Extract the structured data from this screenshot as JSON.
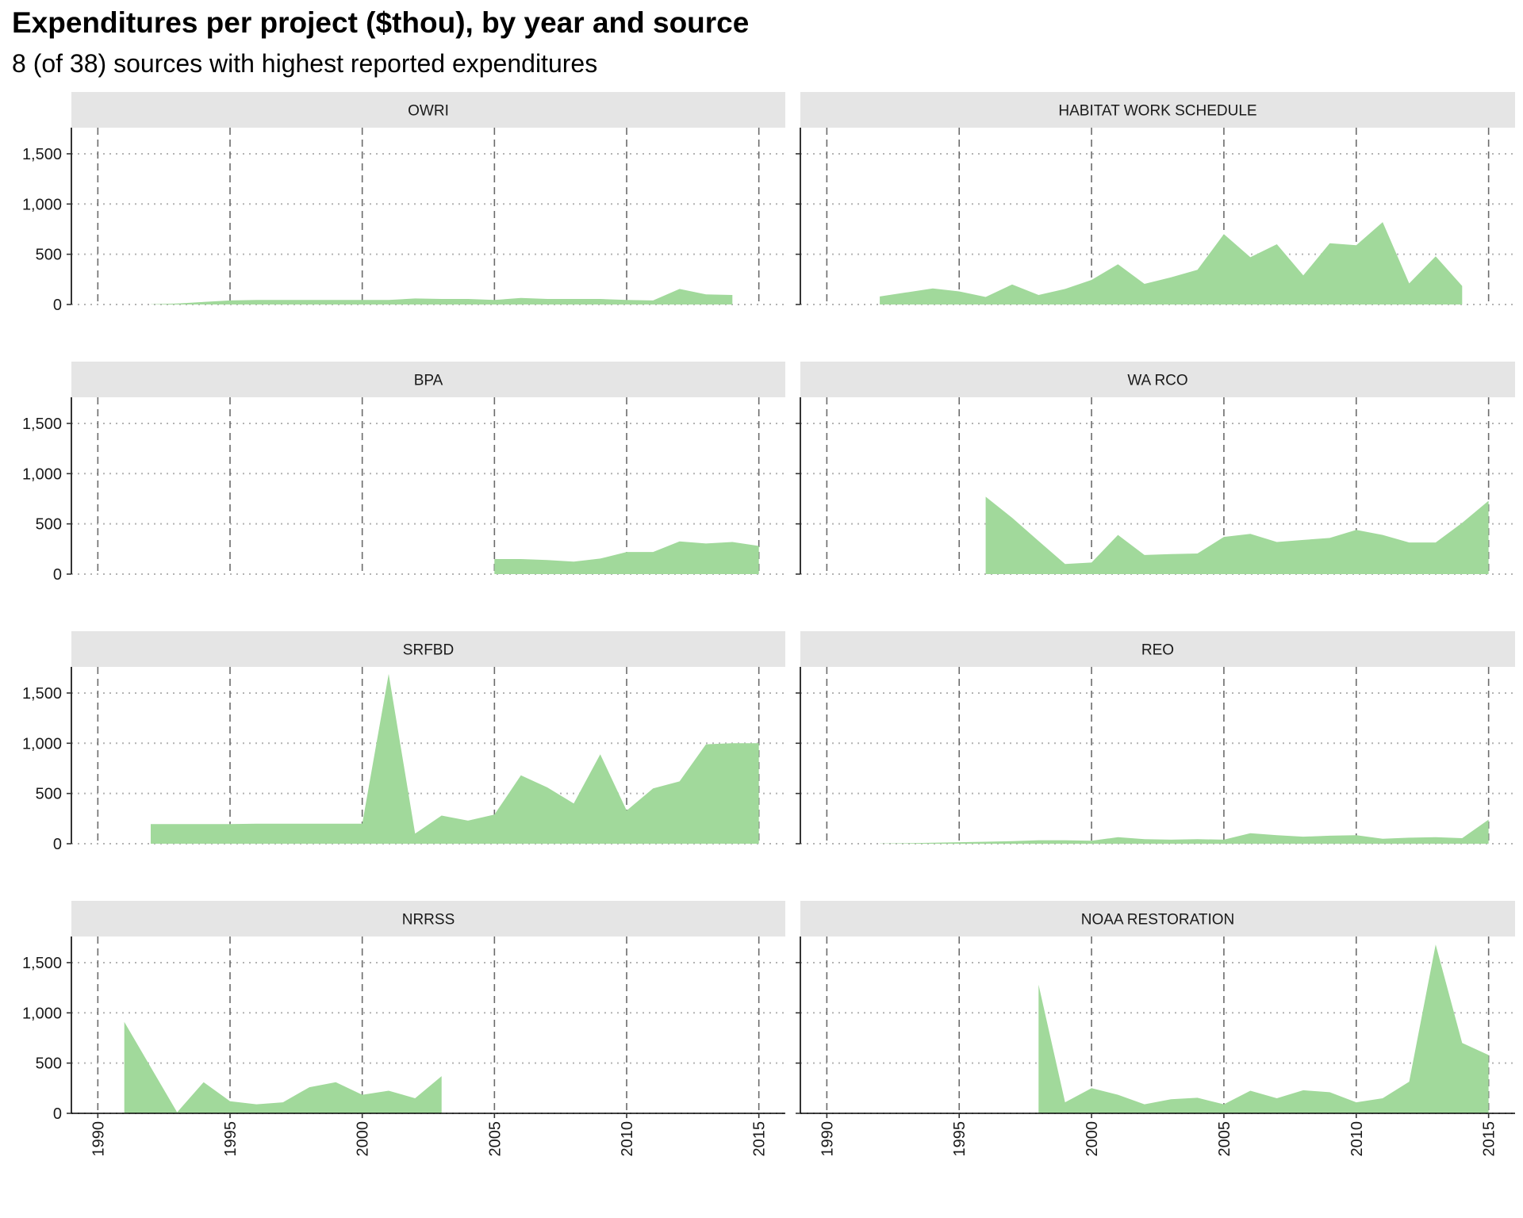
{
  "chart_data": {
    "type": "area",
    "title": "Expenditures per project ($thou), by year and source",
    "subtitle": "8 (of 38) sources with highest reported expenditures",
    "xlabel": "",
    "ylabel": "",
    "x_ticks": [
      1990,
      1995,
      2000,
      2005,
      2010,
      2015
    ],
    "y_ticks": [
      0,
      500,
      1000,
      1500
    ],
    "y_tick_labels": [
      "0",
      "500",
      "1,000",
      "1,500"
    ],
    "xlim": [
      1989,
      2016
    ],
    "ylim": [
      0,
      1760
    ],
    "grid": true,
    "fill_color": "#a1d99b",
    "strip_color": "#e5e5e5",
    "panels": [
      {
        "name": "OWRI",
        "x": [
          1992,
          1993,
          1994,
          1995,
          1996,
          1997,
          1998,
          1999,
          2000,
          2001,
          2002,
          2003,
          2004,
          2005,
          2006,
          2007,
          2008,
          2009,
          2010,
          2011,
          2012,
          2013,
          2014
        ],
        "values": [
          2,
          10,
          25,
          40,
          45,
          45,
          45,
          45,
          45,
          45,
          60,
          55,
          55,
          45,
          65,
          55,
          55,
          55,
          45,
          40,
          155,
          100,
          95
        ]
      },
      {
        "name": "HABITAT WORK SCHEDULE",
        "x": [
          1992,
          1993,
          1994,
          1995,
          1996,
          1997,
          1998,
          1999,
          2000,
          2001,
          2002,
          2003,
          2004,
          2005,
          2006,
          2007,
          2008,
          2009,
          2010,
          2011,
          2012,
          2013,
          2014
        ],
        "values": [
          80,
          120,
          160,
          130,
          75,
          200,
          95,
          155,
          245,
          400,
          205,
          270,
          345,
          700,
          470,
          600,
          290,
          610,
          590,
          820,
          210,
          480,
          185
        ]
      },
      {
        "name": "BPA",
        "x": [
          2005,
          2006,
          2007,
          2008,
          2009,
          2010,
          2011,
          2012,
          2013,
          2014,
          2015
        ],
        "values": [
          150,
          150,
          140,
          125,
          155,
          220,
          220,
          325,
          305,
          320,
          280
        ]
      },
      {
        "name": "WA RCO",
        "x": [
          1996,
          1997,
          1998,
          1999,
          2000,
          2001,
          2002,
          2003,
          2004,
          2005,
          2006,
          2007,
          2008,
          2009,
          2010,
          2011,
          2012,
          2013,
          2014,
          2015
        ],
        "values": [
          770,
          560,
          330,
          100,
          115,
          390,
          190,
          200,
          205,
          370,
          400,
          320,
          340,
          360,
          440,
          390,
          315,
          315,
          510,
          730
        ]
      },
      {
        "name": "SRFBD",
        "x": [
          1992,
          1993,
          1994,
          1995,
          1996,
          1997,
          1998,
          1999,
          2000,
          2001,
          2002,
          2003,
          2004,
          2005,
          2006,
          2007,
          2008,
          2009,
          2010,
          2011,
          2012,
          2013,
          2014,
          2015
        ],
        "values": [
          195,
          195,
          195,
          195,
          200,
          200,
          200,
          200,
          200,
          1690,
          100,
          280,
          230,
          290,
          680,
          560,
          400,
          890,
          330,
          550,
          620,
          990,
          1000,
          1000
        ]
      },
      {
        "name": "REO",
        "x": [
          1992,
          1993,
          1994,
          1995,
          1996,
          1997,
          1998,
          1999,
          2000,
          2001,
          2002,
          2003,
          2004,
          2005,
          2006,
          2007,
          2008,
          2009,
          2010,
          2011,
          2012,
          2013,
          2014,
          2015
        ],
        "values": [
          2,
          5,
          10,
          15,
          20,
          25,
          35,
          35,
          30,
          65,
          45,
          40,
          45,
          40,
          105,
          85,
          70,
          80,
          85,
          50,
          60,
          65,
          55,
          240
        ]
      },
      {
        "name": "NRRSS",
        "x": [
          1991,
          1992,
          1993,
          1994,
          1995,
          1996,
          1997,
          1998,
          1999,
          2000,
          2001,
          2002,
          2003
        ],
        "values": [
          910,
          460,
          10,
          310,
          120,
          90,
          110,
          260,
          310,
          185,
          225,
          150,
          370
        ]
      },
      {
        "name": "NOAA RESTORATION",
        "x": [
          1998,
          1999,
          2000,
          2001,
          2002,
          2003,
          2004,
          2005,
          2006,
          2007,
          2008,
          2009,
          2010,
          2011,
          2012,
          2013,
          2014,
          2015
        ],
        "values": [
          1280,
          110,
          250,
          185,
          90,
          140,
          155,
          90,
          225,
          150,
          230,
          210,
          110,
          150,
          315,
          1680,
          700,
          580
        ]
      }
    ]
  }
}
